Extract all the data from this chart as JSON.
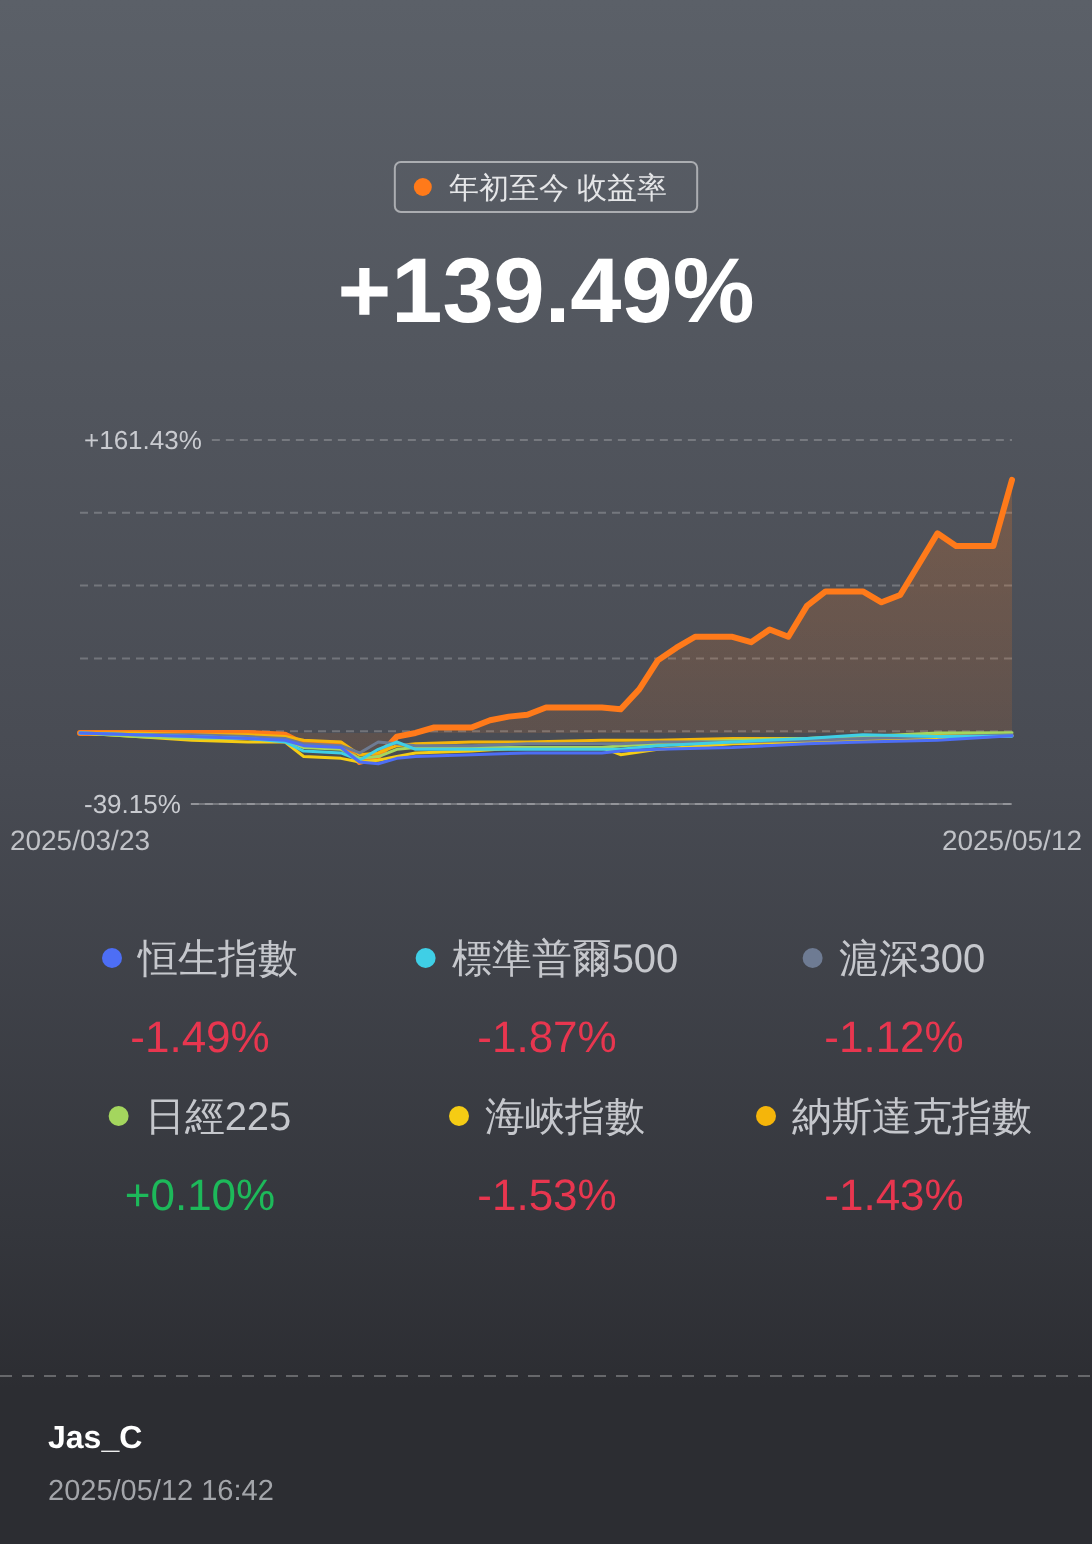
{
  "chart_data": {
    "type": "line",
    "x": [
      "2025-03-23",
      "2025-03-26",
      "2025-03-29",
      "2025-04-01",
      "2025-04-03",
      "2025-04-04",
      "2025-04-06",
      "2025-04-07",
      "2025-04-08",
      "2025-04-09",
      "2025-04-10",
      "2025-04-13",
      "2025-04-16",
      "2025-04-20",
      "2025-04-21",
      "2025-04-23",
      "2025-04-27",
      "2025-05-01",
      "2025-05-04",
      "2025-05-08",
      "2025-05-12"
    ],
    "series": [
      {
        "name": "年初至今 收益率",
        "type": "area",
        "color": "#ff7a1a",
        "x": [
          "2025-03-23",
          "2025-04-01",
          "2025-04-03",
          "2025-04-04",
          "2025-04-06",
          "2025-04-07",
          "2025-04-08",
          "2025-04-09",
          "2025-04-10",
          "2025-04-11",
          "2025-04-13",
          "2025-04-14",
          "2025-04-15",
          "2025-04-16",
          "2025-04-17",
          "2025-04-20",
          "2025-04-21",
          "2025-04-22",
          "2025-04-23",
          "2025-04-24",
          "2025-04-25",
          "2025-04-27",
          "2025-04-28",
          "2025-04-29",
          "2025-04-30",
          "2025-05-01",
          "2025-05-02",
          "2025-05-04",
          "2025-05-05",
          "2025-05-06",
          "2025-05-07",
          "2025-05-08",
          "2025-05-09",
          "2025-05-11",
          "2025-05-12"
        ],
        "values": [
          0,
          0,
          -1,
          -6,
          -6,
          -16,
          -13,
          -2,
          0,
          3,
          3,
          7,
          9,
          10,
          14,
          14,
          13,
          24,
          40,
          47,
          53,
          53,
          50,
          57,
          53,
          70,
          78,
          78,
          72,
          76,
          93,
          110,
          103,
          103,
          139.49
        ]
      },
      {
        "name": "恒生指數",
        "color": "#4d6ef5",
        "values": [
          0,
          -1,
          -2,
          -3,
          -4,
          -7,
          -8,
          -16,
          -17,
          -14,
          -13,
          -12,
          -11,
          -11,
          -10,
          -9,
          -8,
          -6,
          -5,
          -4,
          -1.49
        ]
      },
      {
        "name": "標準普爾500",
        "color": "#3fcfe6",
        "values": [
          0,
          -1,
          -2,
          -3,
          -5,
          -10,
          -11,
          -15,
          -9,
          -5,
          -9,
          -9,
          -9,
          -9,
          -9,
          -7,
          -5,
          -3,
          -1,
          -2,
          -1.87
        ]
      },
      {
        "name": "滬深300",
        "color": "#6e7b93",
        "values": [
          0,
          -1,
          -1,
          -2,
          -3,
          -6,
          -7,
          -11,
          -5,
          -6,
          -7,
          -7,
          -6,
          -6,
          -6,
          -5,
          -5,
          -4,
          -3,
          -2,
          -1.12
        ]
      },
      {
        "name": "日經225",
        "color": "#a4d65e",
        "values": [
          0,
          -2,
          -3,
          -3,
          -4,
          -8,
          -9,
          -14,
          -13,
          -9,
          -8,
          -8,
          -8,
          -8,
          -7,
          -6,
          -4,
          -3,
          -2,
          0,
          0.1
        ]
      },
      {
        "name": "海峽指數",
        "color": "#f5cc14",
        "values": [
          0,
          -2,
          -4,
          -5,
          -5,
          -13,
          -14,
          -16,
          -15,
          -13,
          -11,
          -10,
          -8,
          -8,
          -12,
          -9,
          -6,
          -5,
          -4,
          -3,
          -1.53
        ]
      },
      {
        "name": "納斯達克指數",
        "color": "#f5b50a",
        "values": [
          0,
          0,
          -1,
          -1,
          -2,
          -4,
          -5,
          -12,
          -11,
          -7,
          -6,
          -5,
          -5,
          -4,
          -4,
          -4,
          -3,
          -3,
          -2,
          -1,
          -1.43
        ]
      }
    ],
    "xlim": [
      "2025-03-23",
      "2025-05-12"
    ],
    "xticks": [
      {
        "value": "2025-03-23",
        "label": "2025/03/23"
      },
      {
        "value": "2025-05-12",
        "label": "2025/05/12"
      }
    ],
    "ylim": [
      -39.15,
      161.43
    ],
    "yticks": [
      {
        "value": 161.43,
        "label": "+161.43%"
      },
      {
        "value": 121.31,
        "label": null
      },
      {
        "value": 81.2,
        "label": null
      },
      {
        "value": 41.08,
        "label": null
      },
      {
        "value": 0.97,
        "label": null
      },
      {
        "value": -39.15,
        "label": "-39.15%"
      }
    ],
    "grid": "y",
    "legend": "bottom",
    "annotations": [
      "+139.49%",
      "-1.49%",
      "-1.87%",
      "-1.12%",
      "+0.10%",
      "-1.53%",
      "-1.43%",
      "Jas_C",
      "2025/05/12 16:42"
    ]
  }
}
